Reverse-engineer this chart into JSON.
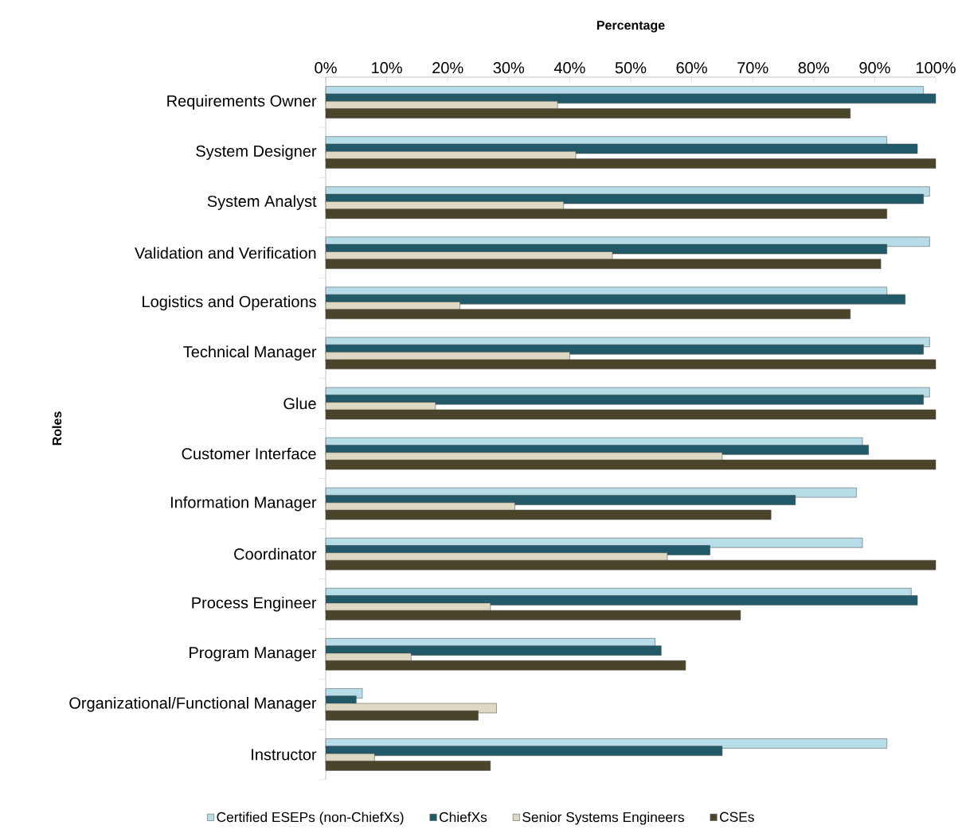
{
  "chart_data": {
    "type": "bar",
    "orientation": "horizontal",
    "xlabel": "Percentage",
    "ylabel": "Roles",
    "categories": [
      "Requirements Owner",
      "System Designer",
      "System Analyst",
      "Validation and Verification",
      "Logistics and Operations",
      "Technical Manager",
      "Glue",
      "Customer Interface",
      "Information Manager",
      "Coordinator",
      "Process Engineer",
      "Program Manager",
      "Organizational/Functional Manager",
      "Instructor"
    ],
    "series": [
      {
        "name": "Certified ESEPs (non-ChiefXs)",
        "color": "#b7dde8",
        "values": [
          98,
          92,
          99,
          99,
          92,
          99,
          99,
          88,
          87,
          88,
          96,
          54,
          6,
          92
        ]
      },
      {
        "name": "ChiefXs",
        "color": "#215968",
        "values": [
          100,
          97,
          98,
          92,
          95,
          98,
          98,
          89,
          77,
          63,
          97,
          55,
          5,
          65
        ]
      },
      {
        "name": "Senior Systems Engineers",
        "color": "#ddd9c3",
        "values": [
          38,
          41,
          39,
          47,
          22,
          40,
          18,
          65,
          31,
          56,
          27,
          14,
          28,
          8
        ]
      },
      {
        "name": "CSEs",
        "color": "#4a452a",
        "values": [
          86,
          100,
          92,
          91,
          86,
          100,
          100,
          100,
          73,
          100,
          68,
          59,
          25,
          27
        ]
      }
    ],
    "xlim": [
      0,
      100
    ],
    "xticks": [
      {
        "value": 0,
        "label": "0%"
      },
      {
        "value": 10,
        "label": "10%"
      },
      {
        "value": 20,
        "label": "20%"
      },
      {
        "value": 30,
        "label": "30%"
      },
      {
        "value": 40,
        "label": "40%"
      },
      {
        "value": 50,
        "label": "50%"
      },
      {
        "value": 60,
        "label": "60%"
      },
      {
        "value": 70,
        "label": "70%"
      },
      {
        "value": 80,
        "label": "80%"
      },
      {
        "value": 90,
        "label": "90%"
      },
      {
        "value": 100,
        "label": "100%"
      }
    ],
    "legend": "bottom"
  }
}
